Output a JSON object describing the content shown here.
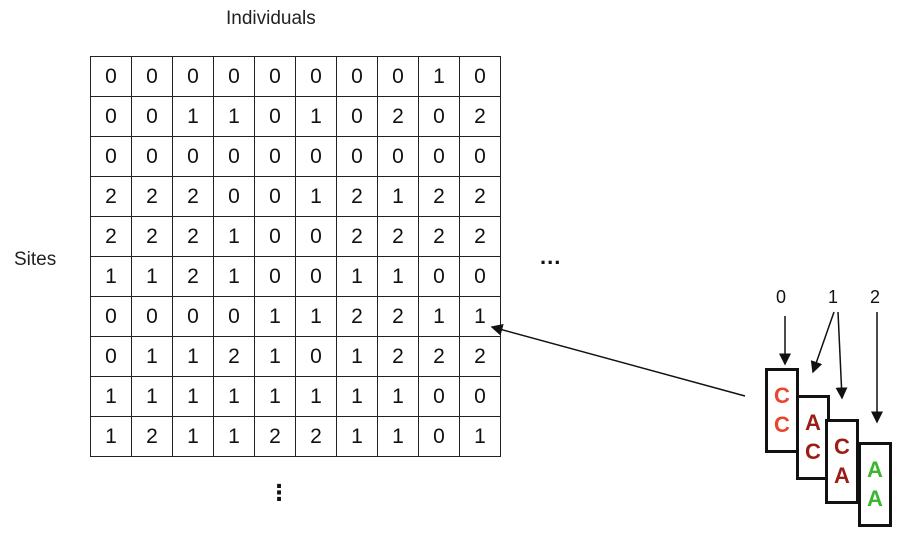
{
  "title": "Individuals",
  "row_label": "Sites",
  "matrix": [
    [
      "0",
      "0",
      "0",
      "0",
      "0",
      "0",
      "0",
      "0",
      "1",
      "0"
    ],
    [
      "0",
      "0",
      "1",
      "1",
      "0",
      "1",
      "0",
      "2",
      "0",
      "2"
    ],
    [
      "0",
      "0",
      "0",
      "0",
      "0",
      "0",
      "0",
      "0",
      "0",
      "0"
    ],
    [
      "2",
      "2",
      "2",
      "0",
      "0",
      "1",
      "2",
      "1",
      "2",
      "2"
    ],
    [
      "2",
      "2",
      "2",
      "1",
      "0",
      "0",
      "2",
      "2",
      "2",
      "2"
    ],
    [
      "1",
      "1",
      "2",
      "1",
      "0",
      "0",
      "1",
      "1",
      "0",
      "0"
    ],
    [
      "0",
      "0",
      "0",
      "0",
      "1",
      "1",
      "2",
      "2",
      "1",
      "1"
    ],
    [
      "0",
      "1",
      "1",
      "2",
      "1",
      "0",
      "1",
      "2",
      "2",
      "2"
    ],
    [
      "1",
      "1",
      "1",
      "1",
      "1",
      "1",
      "1",
      "1",
      "0",
      "0"
    ],
    [
      "1",
      "2",
      "1",
      "1",
      "2",
      "2",
      "1",
      "1",
      "0",
      "1"
    ]
  ],
  "ellipsis_horizontal": "...",
  "ellipsis_vertical": "⋮",
  "key_labels": [
    "0",
    "1",
    "2"
  ],
  "genotypes": [
    {
      "alleles": [
        "C",
        "C"
      ],
      "colors": [
        "#e8462d",
        "#e8462d"
      ]
    },
    {
      "alleles": [
        "A",
        "C"
      ],
      "colors": [
        "#9b1d16",
        "#9b1d16"
      ]
    },
    {
      "alleles": [
        "C",
        "A"
      ],
      "colors": [
        "#9b1d16",
        "#9b1d16"
      ]
    },
    {
      "alleles": [
        "A",
        "A"
      ],
      "colors": [
        "#3cb531",
        "#3cb531"
      ]
    }
  ]
}
